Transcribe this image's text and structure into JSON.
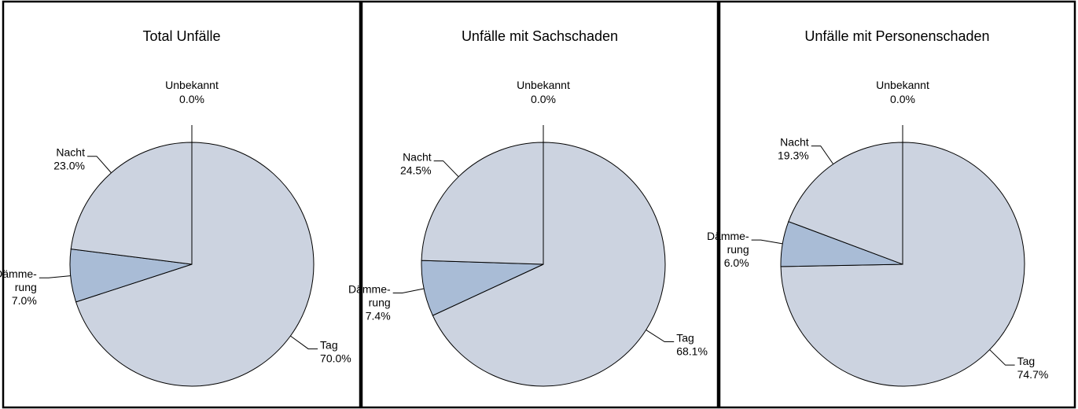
{
  "chart_data": [
    {
      "type": "pie",
      "title": "Total Unfälle",
      "categories": [
        "Tag",
        "Dämme-\nrung",
        "Nacht",
        "Unbekannt"
      ],
      "values": [
        70.0,
        7.0,
        23.0,
        0.0
      ],
      "value_labels": [
        "70.0%",
        "7.0%",
        "23.0%",
        "0.0%"
      ],
      "colors": [
        "#ccd3e0",
        "#a9bcd6",
        "#ccd3e0",
        "#ccd3e0"
      ]
    },
    {
      "type": "pie",
      "title": "Unfälle mit Sachschaden",
      "categories": [
        "Tag",
        "Dämme-\nrung",
        "Nacht",
        "Unbekannt"
      ],
      "values": [
        68.1,
        7.4,
        24.5,
        0.0
      ],
      "value_labels": [
        "68.1%",
        "7.4%",
        "24.5%",
        "0.0%"
      ],
      "colors": [
        "#ccd3e0",
        "#a9bcd6",
        "#ccd3e0",
        "#ccd3e0"
      ]
    },
    {
      "type": "pie",
      "title": "Unfälle mit Personenschaden",
      "categories": [
        "Tag",
        "Dämme-\nrung",
        "Nacht",
        "Unbekannt"
      ],
      "values": [
        74.7,
        6.0,
        19.3,
        0.0
      ],
      "value_labels": [
        "74.7%",
        "6.0%",
        "19.3%",
        "0.0%"
      ],
      "colors": [
        "#ccd3e0",
        "#a9bcd6",
        "#ccd3e0",
        "#ccd3e0"
      ]
    }
  ]
}
